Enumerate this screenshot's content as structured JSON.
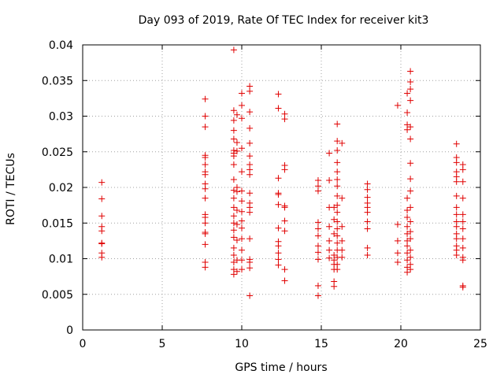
{
  "chart_data": {
    "type": "scatter",
    "title": "Day 093 of 2019, Rate Of TEC Index for receiver kit3",
    "xlabel": "GPS time / hours",
    "ylabel": "ROTI / TECUs",
    "xlim": [
      0,
      25
    ],
    "ylim": [
      0,
      0.04
    ],
    "xticks": [
      0,
      5,
      10,
      15,
      20,
      25
    ],
    "yticks": [
      0,
      0.005,
      0.01,
      0.015,
      0.02,
      0.025,
      0.03,
      0.035,
      0.04
    ],
    "xtick_labels": [
      "0",
      "5",
      "10",
      "15",
      "20",
      "25"
    ],
    "ytick_labels": [
      "0",
      "0.005",
      "0.01",
      "0.015",
      "0.02",
      "0.025",
      "0.03",
      "0.035",
      "0.04"
    ],
    "grid": true,
    "marker": "+",
    "color": "#e00000",
    "series": [
      {
        "name": "ROTI",
        "points": [
          [
            1.2,
            0.0207
          ],
          [
            1.2,
            0.0184
          ],
          [
            1.2,
            0.016
          ],
          [
            1.2,
            0.0145
          ],
          [
            1.2,
            0.0139
          ],
          [
            1.2,
            0.0122
          ],
          [
            1.2,
            0.0121
          ],
          [
            1.2,
            0.0108
          ],
          [
            1.2,
            0.0102
          ],
          [
            7.7,
            0.0324
          ],
          [
            7.7,
            0.03
          ],
          [
            7.7,
            0.0285
          ],
          [
            7.7,
            0.0245
          ],
          [
            7.7,
            0.0242
          ],
          [
            7.7,
            0.0232
          ],
          [
            7.7,
            0.0222
          ],
          [
            7.7,
            0.0218
          ],
          [
            7.7,
            0.0205
          ],
          [
            7.7,
            0.0198
          ],
          [
            7.7,
            0.0185
          ],
          [
            7.7,
            0.0162
          ],
          [
            7.7,
            0.0158
          ],
          [
            7.7,
            0.015
          ],
          [
            7.7,
            0.0137
          ],
          [
            7.7,
            0.0135
          ],
          [
            7.7,
            0.012
          ],
          [
            7.7,
            0.0095
          ],
          [
            7.7,
            0.0088
          ],
          [
            9.5,
            0.0393
          ],
          [
            9.5,
            0.0308
          ],
          [
            9.5,
            0.0294
          ],
          [
            9.5,
            0.028
          ],
          [
            9.5,
            0.0268
          ],
          [
            9.5,
            0.0252
          ],
          [
            9.5,
            0.0248
          ],
          [
            9.5,
            0.0244
          ],
          [
            9.5,
            0.0232
          ],
          [
            9.5,
            0.0211
          ],
          [
            9.5,
            0.0196
          ],
          [
            9.5,
            0.0185
          ],
          [
            9.5,
            0.0172
          ],
          [
            9.5,
            0.016
          ],
          [
            9.5,
            0.015
          ],
          [
            9.5,
            0.014
          ],
          [
            9.5,
            0.013
          ],
          [
            9.5,
            0.0115
          ],
          [
            9.5,
            0.0105
          ],
          [
            9.5,
            0.0095
          ],
          [
            9.5,
            0.0085
          ],
          [
            9.5,
            0.0078
          ],
          [
            9.7,
            0.0302
          ],
          [
            9.7,
            0.0263
          ],
          [
            9.7,
            0.0251
          ],
          [
            9.7,
            0.02
          ],
          [
            9.7,
            0.0194
          ],
          [
            9.7,
            0.0168
          ],
          [
            9.7,
            0.0148
          ],
          [
            9.7,
            0.0126
          ],
          [
            9.7,
            0.0098
          ],
          [
            9.7,
            0.0082
          ],
          [
            10.0,
            0.0332
          ],
          [
            10.0,
            0.0315
          ],
          [
            10.0,
            0.0297
          ],
          [
            10.0,
            0.0255
          ],
          [
            10.0,
            0.0222
          ],
          [
            10.0,
            0.0195
          ],
          [
            10.0,
            0.0181
          ],
          [
            10.0,
            0.0166
          ],
          [
            10.0,
            0.0153
          ],
          [
            10.0,
            0.0143
          ],
          [
            10.0,
            0.0128
          ],
          [
            10.0,
            0.0112
          ],
          [
            10.0,
            0.0098
          ],
          [
            10.0,
            0.0085
          ],
          [
            10.5,
            0.0342
          ],
          [
            10.5,
            0.0335
          ],
          [
            10.5,
            0.0306
          ],
          [
            10.5,
            0.0283
          ],
          [
            10.5,
            0.0262
          ],
          [
            10.5,
            0.0244
          ],
          [
            10.5,
            0.0232
          ],
          [
            10.5,
            0.0225
          ],
          [
            10.5,
            0.0218
          ],
          [
            10.5,
            0.0192
          ],
          [
            10.5,
            0.0178
          ],
          [
            10.5,
            0.0172
          ],
          [
            10.5,
            0.0165
          ],
          [
            10.5,
            0.0128
          ],
          [
            10.5,
            0.0099
          ],
          [
            10.5,
            0.0095
          ],
          [
            10.5,
            0.0087
          ],
          [
            10.5,
            0.0048
          ],
          [
            12.3,
            0.0331
          ],
          [
            12.3,
            0.0311
          ],
          [
            12.3,
            0.0213
          ],
          [
            12.3,
            0.0192
          ],
          [
            12.3,
            0.019
          ],
          [
            12.3,
            0.0176
          ],
          [
            12.3,
            0.0143
          ],
          [
            12.3,
            0.0124
          ],
          [
            12.3,
            0.0118
          ],
          [
            12.3,
            0.0108
          ],
          [
            12.3,
            0.0099
          ],
          [
            12.3,
            0.0091
          ],
          [
            12.7,
            0.0303
          ],
          [
            12.7,
            0.0296
          ],
          [
            12.7,
            0.0231
          ],
          [
            12.7,
            0.0225
          ],
          [
            12.7,
            0.0174
          ],
          [
            12.7,
            0.0172
          ],
          [
            12.7,
            0.0153
          ],
          [
            12.7,
            0.0139
          ],
          [
            12.7,
            0.0085
          ],
          [
            12.7,
            0.0069
          ],
          [
            14.8,
            0.021
          ],
          [
            14.8,
            0.0202
          ],
          [
            14.8,
            0.0195
          ],
          [
            14.8,
            0.0151
          ],
          [
            14.8,
            0.0142
          ],
          [
            14.8,
            0.0132
          ],
          [
            14.8,
            0.0118
          ],
          [
            14.8,
            0.0109
          ],
          [
            14.8,
            0.0099
          ],
          [
            14.8,
            0.0062
          ],
          [
            14.8,
            0.0048
          ],
          [
            15.5,
            0.0248
          ],
          [
            15.5,
            0.021
          ],
          [
            15.5,
            0.0172
          ],
          [
            15.5,
            0.0145
          ],
          [
            15.5,
            0.0125
          ],
          [
            15.5,
            0.0112
          ],
          [
            15.5,
            0.0101
          ],
          [
            15.8,
            0.0172
          ],
          [
            15.8,
            0.0155
          ],
          [
            15.8,
            0.0135
          ],
          [
            15.8,
            0.0105
          ],
          [
            15.8,
            0.0098
          ],
          [
            15.8,
            0.0092
          ],
          [
            15.8,
            0.0085
          ],
          [
            15.8,
            0.0068
          ],
          [
            15.8,
            0.0061
          ],
          [
            16.0,
            0.0289
          ],
          [
            16.0,
            0.0265
          ],
          [
            16.0,
            0.0252
          ],
          [
            16.0,
            0.0235
          ],
          [
            16.0,
            0.0222
          ],
          [
            16.0,
            0.0211
          ],
          [
            16.0,
            0.0202
          ],
          [
            16.0,
            0.0188
          ],
          [
            16.0,
            0.0175
          ],
          [
            16.0,
            0.0165
          ],
          [
            16.0,
            0.0152
          ],
          [
            16.0,
            0.0142
          ],
          [
            16.0,
            0.0132
          ],
          [
            16.0,
            0.0122
          ],
          [
            16.0,
            0.0112
          ],
          [
            16.0,
            0.0102
          ],
          [
            16.0,
            0.0092
          ],
          [
            16.0,
            0.0085
          ],
          [
            16.3,
            0.0262
          ],
          [
            16.3,
            0.0185
          ],
          [
            16.3,
            0.0145
          ],
          [
            16.3,
            0.0125
          ],
          [
            16.3,
            0.0112
          ],
          [
            16.3,
            0.0102
          ],
          [
            17.9,
            0.0205
          ],
          [
            17.9,
            0.0197
          ],
          [
            17.9,
            0.0186
          ],
          [
            17.9,
            0.0178
          ],
          [
            17.9,
            0.0172
          ],
          [
            17.9,
            0.0165
          ],
          [
            17.9,
            0.0152
          ],
          [
            17.9,
            0.0142
          ],
          [
            17.9,
            0.0115
          ],
          [
            17.9,
            0.0105
          ],
          [
            19.8,
            0.0315
          ],
          [
            19.8,
            0.0148
          ],
          [
            19.8,
            0.0125
          ],
          [
            19.8,
            0.0108
          ],
          [
            19.8,
            0.0095
          ],
          [
            20.4,
            0.0332
          ],
          [
            20.4,
            0.0305
          ],
          [
            20.4,
            0.0288
          ],
          [
            20.4,
            0.0281
          ],
          [
            20.4,
            0.0185
          ],
          [
            20.4,
            0.0168
          ],
          [
            20.4,
            0.0158
          ],
          [
            20.4,
            0.0145
          ],
          [
            20.4,
            0.0135
          ],
          [
            20.4,
            0.0125
          ],
          [
            20.4,
            0.0118
          ],
          [
            20.4,
            0.0108
          ],
          [
            20.4,
            0.0098
          ],
          [
            20.4,
            0.0088
          ],
          [
            20.4,
            0.0081
          ],
          [
            20.6,
            0.0363
          ],
          [
            20.6,
            0.0348
          ],
          [
            20.6,
            0.0338
          ],
          [
            20.6,
            0.0322
          ],
          [
            20.6,
            0.0285
          ],
          [
            20.6,
            0.0268
          ],
          [
            20.6,
            0.0234
          ],
          [
            20.6,
            0.0212
          ],
          [
            20.6,
            0.0195
          ],
          [
            20.6,
            0.0172
          ],
          [
            20.6,
            0.0152
          ],
          [
            20.6,
            0.0138
          ],
          [
            20.6,
            0.0128
          ],
          [
            20.6,
            0.0112
          ],
          [
            20.6,
            0.0102
          ],
          [
            20.6,
            0.0092
          ],
          [
            20.6,
            0.0085
          ],
          [
            23.5,
            0.0261
          ],
          [
            23.5,
            0.0242
          ],
          [
            23.5,
            0.0235
          ],
          [
            23.5,
            0.0222
          ],
          [
            23.5,
            0.0215
          ],
          [
            23.5,
            0.0208
          ],
          [
            23.5,
            0.0188
          ],
          [
            23.5,
            0.0172
          ],
          [
            23.5,
            0.0162
          ],
          [
            23.5,
            0.0152
          ],
          [
            23.5,
            0.0145
          ],
          [
            23.5,
            0.0135
          ],
          [
            23.5,
            0.0128
          ],
          [
            23.5,
            0.0118
          ],
          [
            23.5,
            0.0112
          ],
          [
            23.5,
            0.0105
          ],
          [
            23.9,
            0.0232
          ],
          [
            23.9,
            0.0225
          ],
          [
            23.9,
            0.0208
          ],
          [
            23.9,
            0.0185
          ],
          [
            23.9,
            0.0162
          ],
          [
            23.9,
            0.0152
          ],
          [
            23.9,
            0.0142
          ],
          [
            23.9,
            0.0128
          ],
          [
            23.9,
            0.0115
          ],
          [
            23.9,
            0.0102
          ],
          [
            23.9,
            0.0098
          ],
          [
            23.9,
            0.0062
          ],
          [
            23.9,
            0.006
          ]
        ]
      }
    ]
  }
}
